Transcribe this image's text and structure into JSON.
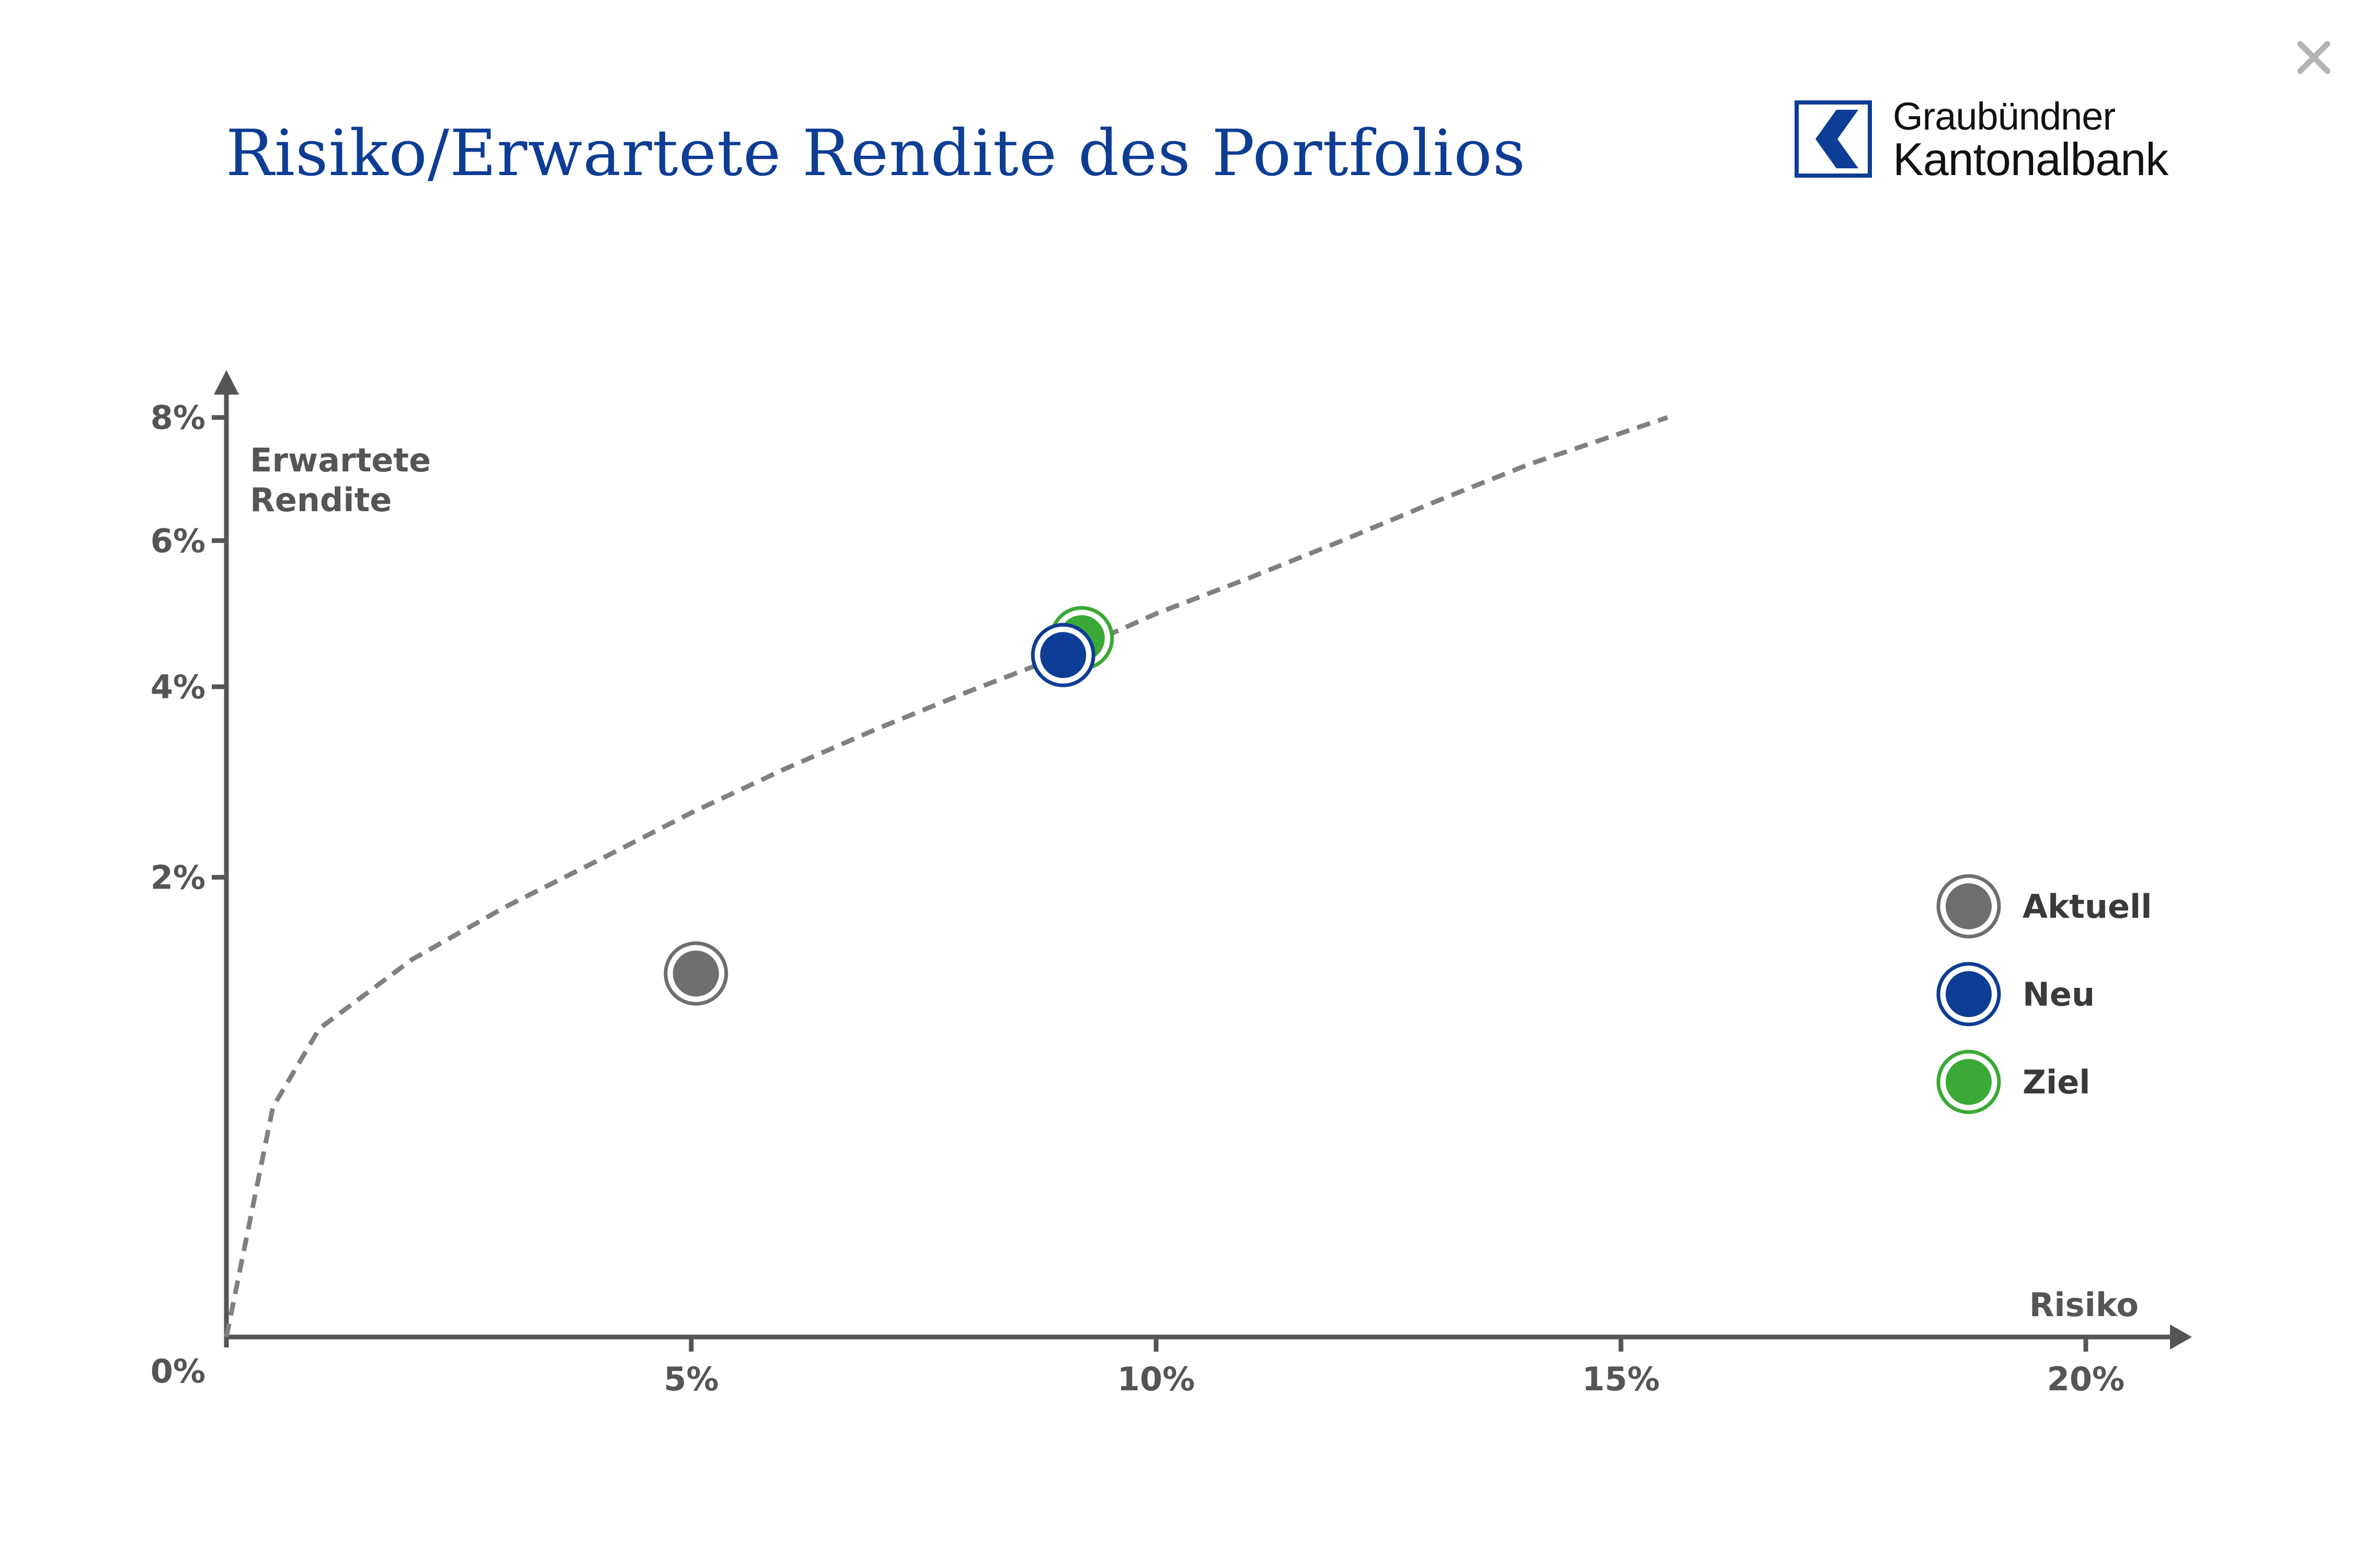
{
  "title": "Risiko/Erwartete Rendite des Portfolios",
  "close_label": "×",
  "logo": {
    "line1": "Graubündner",
    "line2": "Kantonalbank",
    "color": "#0d3d94"
  },
  "chart_data": {
    "type": "scatter",
    "xlabel": "Risiko",
    "ylabel_lines": [
      "Erwartete",
      "Rendite"
    ],
    "x_ticks": [
      {
        "value": 5,
        "label": "5%"
      },
      {
        "value": 10,
        "label": "10%"
      },
      {
        "value": 15,
        "label": "15%"
      },
      {
        "value": 20,
        "label": "20%"
      }
    ],
    "y_ticks": [
      {
        "value": 2,
        "label": "2%"
      },
      {
        "value": 4,
        "label": "4%"
      },
      {
        "value": 6,
        "label": "6%"
      },
      {
        "value": 8,
        "label": "8%"
      }
    ],
    "origin_label": "0%",
    "xlim": [
      0,
      20
    ],
    "ylim": [
      0,
      8
    ],
    "y_scale": "sqrt",
    "frontier_curve": {
      "style": "dashed",
      "color": "#808080",
      "points": [
        [
          0,
          0
        ],
        [
          0.5,
          0.5
        ],
        [
          1,
          0.9
        ],
        [
          2,
          1.35
        ],
        [
          3,
          1.75
        ],
        [
          4,
          2.15
        ],
        [
          5,
          2.6
        ],
        [
          6,
          3.05
        ],
        [
          7,
          3.5
        ],
        [
          8,
          3.95
        ],
        [
          9,
          4.4
        ],
        [
          10,
          4.95
        ],
        [
          11,
          5.45
        ],
        [
          12,
          6.0
        ],
        [
          13,
          6.6
        ],
        [
          14,
          7.2
        ],
        [
          15.5,
          8.0
        ]
      ]
    },
    "series": [
      {
        "name": "Aktuell",
        "x": 5.05,
        "y": 1.25,
        "color": "#6e6e6e"
      },
      {
        "name": "Ziel",
        "x": 9.2,
        "y": 4.62,
        "color": "#3aa935"
      },
      {
        "name": "Neu",
        "x": 9.0,
        "y": 4.4,
        "color": "#0d3d94"
      }
    ],
    "legend": {
      "placement": "right",
      "items": [
        {
          "name": "Aktuell",
          "color": "#6e6e6e"
        },
        {
          "name": "Neu",
          "color": "#0d3d94"
        },
        {
          "name": "Ziel",
          "color": "#3aa935"
        }
      ]
    },
    "axis_color": "#555555"
  }
}
